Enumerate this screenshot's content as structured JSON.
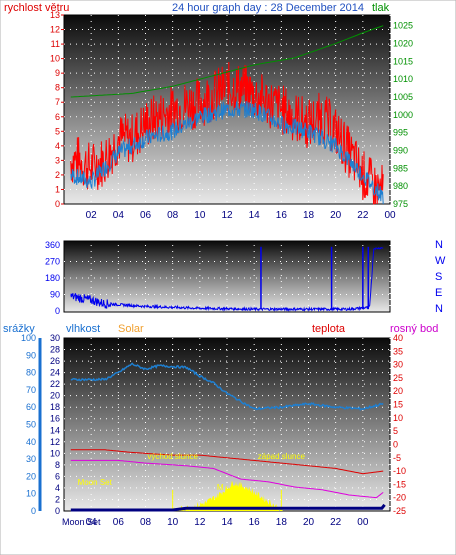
{
  "header": {
    "left_label": "rychlost větru",
    "title": "24 hour graph day : 28 December 2014",
    "right_label": "tlak"
  },
  "colors": {
    "wind": "#ff0000",
    "gust_line": "#1f7fd0",
    "pressure": "#009000",
    "direction": "#0000ee",
    "humidity": "#1f7fd0",
    "temp": "#dd0000",
    "dew": "#dd00dd",
    "rain": "#000080",
    "solar": "#ffff00",
    "solar_label": "#f0a030",
    "rosny": "#cc00cc",
    "rain_axis": "#1a70d0"
  },
  "chart_data": [
    {
      "type": "line",
      "name": "wind-pressure",
      "ylabel": "rychlost větru",
      "y2label": "tlak",
      "ylim": [
        0,
        13
      ],
      "y2lim": [
        975,
        1028
      ],
      "yticks": [
        0,
        1,
        2,
        3,
        4,
        5,
        6,
        7,
        8,
        9,
        10,
        11,
        12,
        13
      ],
      "y2ticks": [
        975,
        980,
        985,
        990,
        995,
        1000,
        1005,
        1010,
        1015,
        1020,
        1025
      ],
      "x_ticks": [
        "02",
        "04",
        "06",
        "08",
        "10",
        "12",
        "14",
        "16",
        "18",
        "20",
        "22",
        "00"
      ],
      "wind_keypoints": [
        [
          0.5,
          3
        ],
        [
          1,
          3
        ],
        [
          2,
          2.5
        ],
        [
          3,
          3
        ],
        [
          4,
          4.5
        ],
        [
          5,
          4.5
        ],
        [
          6,
          5.5
        ],
        [
          7,
          6
        ],
        [
          8,
          6.5
        ],
        [
          9,
          6.8
        ],
        [
          10,
          7
        ],
        [
          11,
          7.5
        ],
        [
          12,
          8
        ],
        [
          13,
          8
        ],
        [
          14,
          7.5
        ],
        [
          15,
          7
        ],
        [
          16,
          6.5
        ],
        [
          17,
          6
        ],
        [
          18,
          5.5
        ],
        [
          19,
          6
        ],
        [
          20,
          5
        ],
        [
          21,
          3.5
        ],
        [
          22,
          2
        ],
        [
          23,
          1
        ],
        [
          23.5,
          1
        ]
      ],
      "gust_keypoints": [
        [
          0.5,
          2
        ],
        [
          2,
          1.5
        ],
        [
          4,
          3.5
        ],
        [
          6,
          4.5
        ],
        [
          8,
          5
        ],
        [
          10,
          6
        ],
        [
          12,
          6.5
        ],
        [
          14,
          6.5
        ],
        [
          16,
          5.5
        ],
        [
          18,
          5
        ],
        [
          20,
          4
        ],
        [
          22,
          2
        ],
        [
          23.5,
          0.5
        ]
      ],
      "pressure_keypoints": [
        [
          0.5,
          1005
        ],
        [
          5,
          1006
        ],
        [
          8,
          1008
        ],
        [
          11,
          1011
        ],
        [
          14,
          1014
        ],
        [
          17,
          1016
        ],
        [
          20,
          1020
        ],
        [
          22,
          1023
        ],
        [
          23.5,
          1025
        ]
      ]
    },
    {
      "type": "scatter",
      "name": "wind-direction",
      "ylim": [
        0,
        360
      ],
      "yticks": [
        0,
        90,
        180,
        270,
        360
      ],
      "right_labels": [
        "N",
        "W",
        "S",
        "E",
        "N"
      ],
      "dir_keypoints": [
        [
          0.5,
          80
        ],
        [
          2,
          60
        ],
        [
          3,
          40
        ],
        [
          6,
          25
        ],
        [
          10,
          15
        ],
        [
          14,
          10
        ],
        [
          18,
          10
        ],
        [
          21,
          10
        ],
        [
          22.5,
          20
        ],
        [
          22.8,
          340
        ],
        [
          23.5,
          345
        ]
      ],
      "spikes": [
        14.5,
        19.7,
        22.0,
        22.4
      ]
    },
    {
      "type": "line",
      "name": "humidity-temp",
      "left_outer_label": "srážky",
      "left_inner_label": "vlhkost",
      "solar_label": "Solar",
      "temp_label": "teplota",
      "dew_label": "rosný bod",
      "outer_ticks": [
        0,
        10,
        20,
        30,
        40,
        50,
        60,
        70,
        80,
        90,
        100
      ],
      "inner_ticks": [
        0,
        2,
        4,
        6,
        8,
        10,
        12,
        14,
        16,
        18,
        20,
        22,
        24,
        26,
        28,
        30
      ],
      "right_ticks": [
        40,
        35,
        30,
        25,
        20,
        15,
        10,
        5,
        0,
        -5,
        -10,
        -15,
        -20,
        -25
      ],
      "ylim_hum": [
        0,
        100
      ],
      "ylim_temp": [
        -25,
        40
      ],
      "humidity_keypoints": [
        [
          0.5,
          76
        ],
        [
          3,
          76
        ],
        [
          4,
          80
        ],
        [
          5,
          85
        ],
        [
          6,
          82
        ],
        [
          7,
          84
        ],
        [
          9,
          83
        ],
        [
          10,
          78
        ],
        [
          11,
          74
        ],
        [
          12,
          68
        ],
        [
          14,
          59
        ],
        [
          16,
          60
        ],
        [
          18,
          62
        ],
        [
          20,
          60
        ],
        [
          22,
          59
        ],
        [
          23.5,
          62
        ]
      ],
      "temp_keypoints": [
        [
          0.5,
          -2
        ],
        [
          3,
          -2
        ],
        [
          5,
          -3
        ],
        [
          8,
          -4
        ],
        [
          10,
          -4
        ],
        [
          12,
          -5
        ],
        [
          14,
          -6
        ],
        [
          16,
          -7
        ],
        [
          18,
          -8
        ],
        [
          20,
          -9
        ],
        [
          22,
          -11
        ],
        [
          23.5,
          -10
        ]
      ],
      "dew_keypoints": [
        [
          0.5,
          -6
        ],
        [
          4,
          -6
        ],
        [
          6,
          -7
        ],
        [
          9,
          -8
        ],
        [
          11,
          -9
        ],
        [
          13,
          -13
        ],
        [
          15,
          -14
        ],
        [
          17,
          -16
        ],
        [
          19,
          -17
        ],
        [
          21,
          -19
        ],
        [
          23,
          -20
        ],
        [
          23.5,
          -18
        ]
      ],
      "solar_keypoints": [
        [
          7.9,
          0
        ],
        [
          8.5,
          0.3
        ],
        [
          9.5,
          0.8
        ],
        [
          10.5,
          1.5
        ],
        [
          11.5,
          3
        ],
        [
          12.5,
          5
        ],
        [
          13.5,
          4
        ],
        [
          14.5,
          2.5
        ],
        [
          15.5,
          1
        ],
        [
          16.1,
          0
        ]
      ],
      "rain_keypoints": [
        [
          0.5,
          0
        ],
        [
          8,
          0
        ],
        [
          9,
          1
        ],
        [
          23.4,
          1
        ],
        [
          23.6,
          3
        ]
      ],
      "x_ticks": [
        "02",
        "04",
        "06",
        "08",
        "10",
        "12",
        "14",
        "16",
        "18",
        "20",
        "22",
        "00"
      ],
      "x_first_label": "Moon Set",
      "annotations": [
        {
          "text": "Moon Set",
          "x": 1.0,
          "y": 15
        },
        {
          "text": "východ slunce",
          "x": 8.0,
          "y": 30
        },
        {
          "text": "západ slunce",
          "x": 16.0,
          "y": 30
        },
        {
          "text": "M",
          "x": 11.5,
          "y": 12
        }
      ]
    }
  ]
}
